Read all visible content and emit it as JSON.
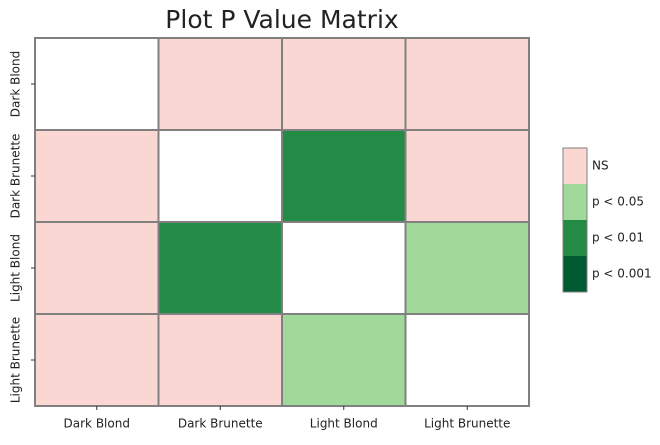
{
  "chart_data": {
    "type": "heatmap",
    "title": "Plot P Value Matrix",
    "categories": [
      "Dark Blond",
      "Dark Brunette",
      "Light Blond",
      "Light Brunette"
    ],
    "legend": [
      {
        "label": "NS",
        "color": "#fbd7d4"
      },
      {
        "label": "p < 0.05",
        "color": "#a1d99b"
      },
      {
        "label": "p < 0.01",
        "color": "#238b45"
      },
      {
        "label": "p < 0.001",
        "color": "#005a32"
      }
    ],
    "matrix": [
      [
        null,
        0,
        0,
        0
      ],
      [
        0,
        null,
        2,
        0
      ],
      [
        0,
        2,
        null,
        1
      ],
      [
        0,
        0,
        1,
        null
      ]
    ]
  }
}
